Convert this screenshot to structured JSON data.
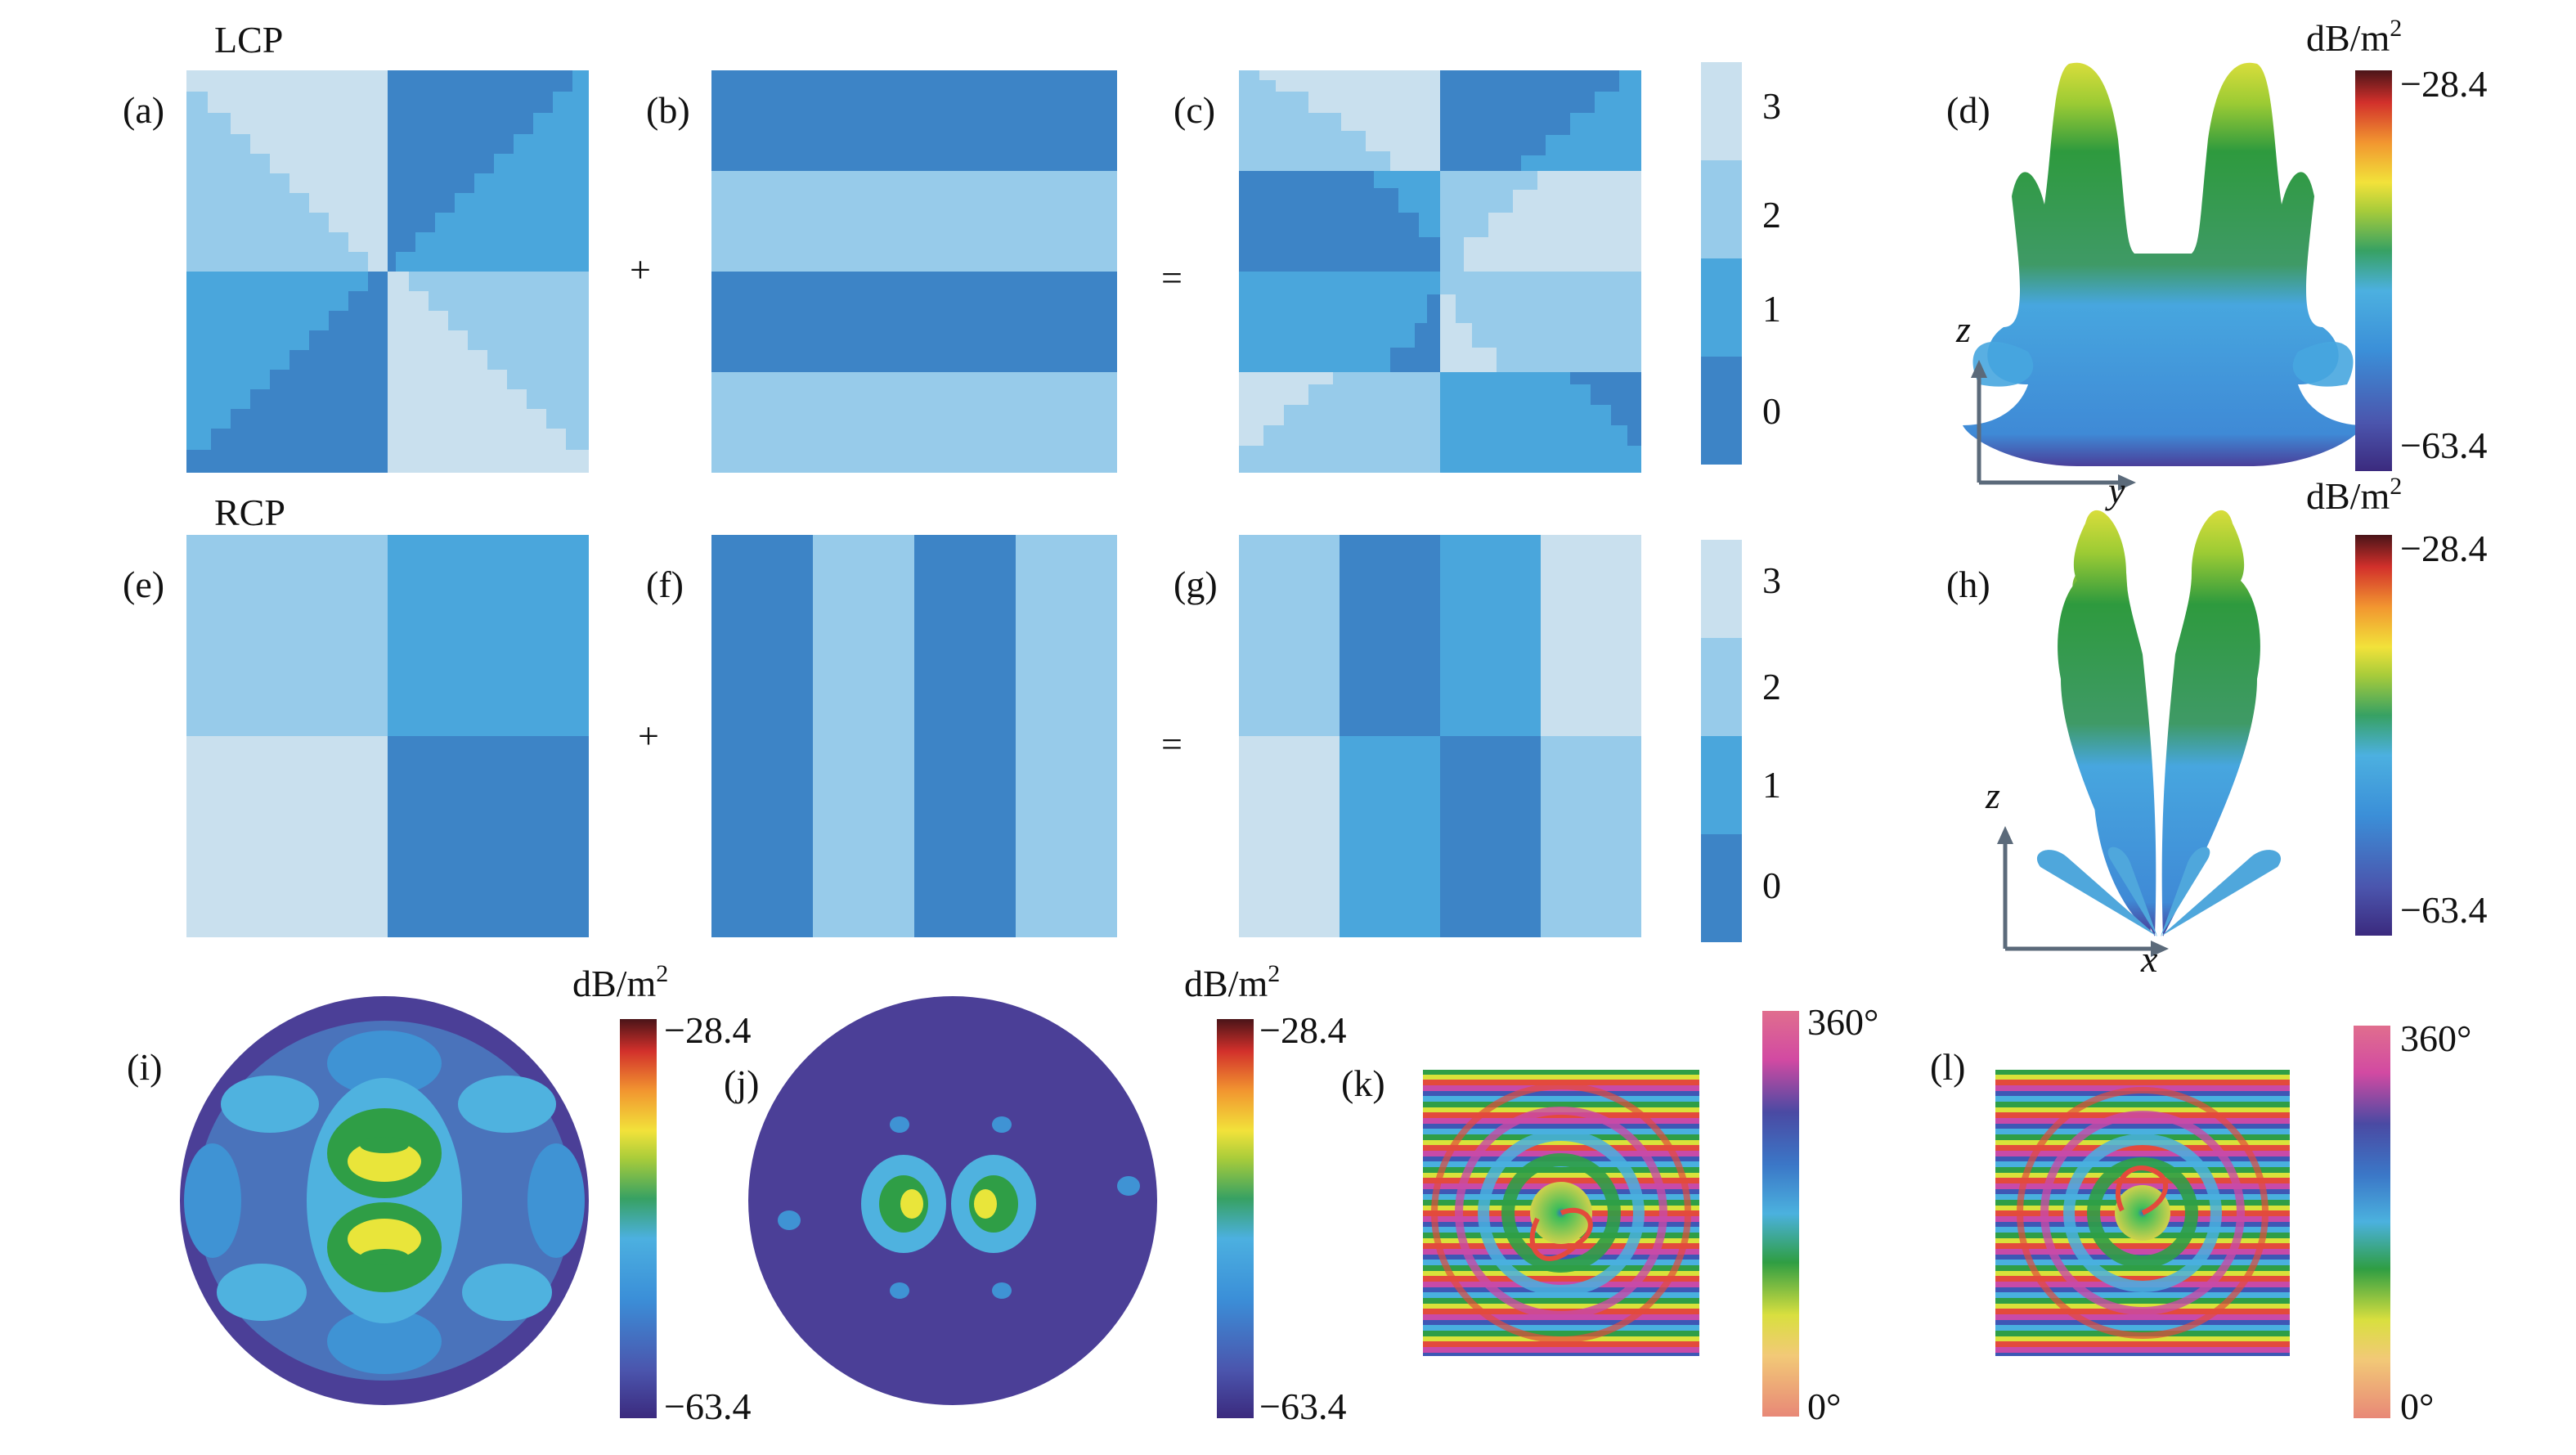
{
  "sections": {
    "lcp": "LCP",
    "rcp": "RCP"
  },
  "panel_labels": {
    "a": "(a)",
    "b": "(b)",
    "c": "(c)",
    "d": "(d)",
    "e": "(e)",
    "f": "(f)",
    "g": "(g)",
    "h": "(h)",
    "i": "(i)",
    "j": "(j)",
    "k": "(k)",
    "l": "(l)"
  },
  "operators": {
    "plus": "+",
    "equals": "="
  },
  "discrete_colorbar": {
    "levels": [
      "0",
      "1",
      "2",
      "3"
    ],
    "colors": [
      "#3d84c6",
      "#4aa6dc",
      "#97cbea",
      "#c9e0ee"
    ]
  },
  "db_colorbar": {
    "unit": "dB/m",
    "unit_exp": "2",
    "max": "−28.4",
    "min": "−63.4"
  },
  "phase_colorbar": {
    "max": "360°",
    "min": "0°"
  },
  "axes": {
    "d": {
      "vertical": "z",
      "horizontal": "y"
    },
    "h": {
      "vertical": "z",
      "horizontal": "x"
    }
  },
  "colors": {
    "level0": "#3d84c6",
    "level1": "#4aa6dc",
    "level2": "#97cbea",
    "level3": "#c9e0ee",
    "background_far_field": "#4b3f97"
  }
}
